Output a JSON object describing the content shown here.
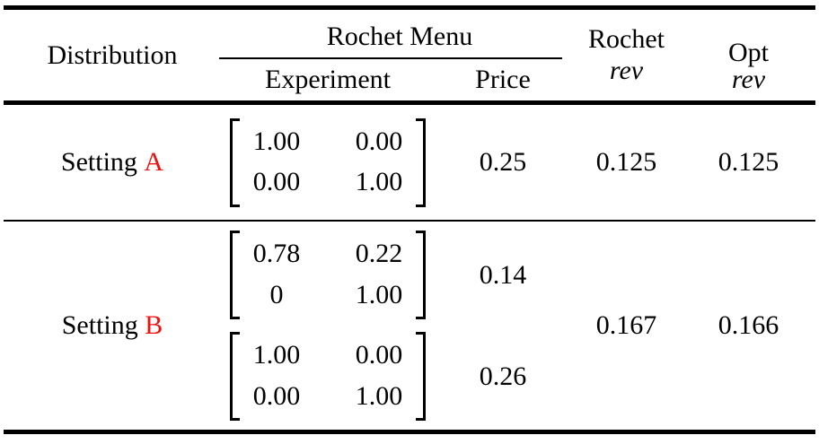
{
  "table": {
    "colors": {
      "accent_red": "#ee1111",
      "text": "#000000"
    },
    "header": {
      "distribution": "Distribution",
      "rochet_menu": "Rochet Menu",
      "experiment": "Experiment",
      "price": "Price",
      "rochet_rev_line1": "Rochet",
      "rochet_rev_line2": "rev",
      "opt_rev_line1": "Opt",
      "opt_rev_line2": "rev"
    },
    "rows": [
      {
        "setting_prefix": "Setting",
        "setting_letter": "A",
        "menus": [
          {
            "matrix": [
              [
                "1.00",
                "0.00"
              ],
              [
                "0.00",
                "1.00"
              ]
            ],
            "price": "0.25"
          }
        ],
        "rochet_rev": "0.125",
        "opt_rev": "0.125"
      },
      {
        "setting_prefix": "Setting",
        "setting_letter": "B",
        "menus": [
          {
            "matrix": [
              [
                "0.78",
                "0.22"
              ],
              [
                "0",
                "1.00"
              ]
            ],
            "price": "0.14"
          },
          {
            "matrix": [
              [
                "1.00",
                "0.00"
              ],
              [
                "0.00",
                "1.00"
              ]
            ],
            "price": "0.26"
          }
        ],
        "rochet_rev": "0.167",
        "opt_rev": "0.166"
      }
    ]
  }
}
